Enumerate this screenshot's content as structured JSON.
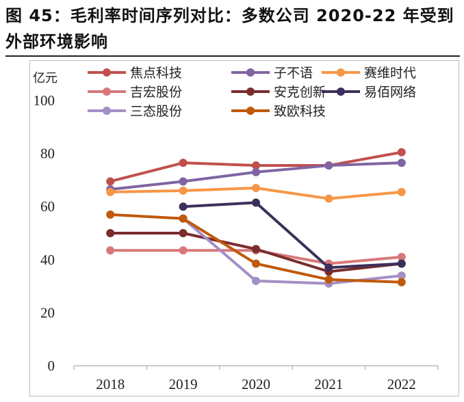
{
  "figure": {
    "title": "图 45：毛利率时间序列对比：多数公司 2020-22 年受到外部环境影响"
  },
  "chart_data": {
    "type": "line",
    "title": "",
    "xlabel": "",
    "ylabel": "亿元",
    "ylim": [
      0,
      100
    ],
    "yticks": [
      0,
      20,
      40,
      60,
      80,
      100
    ],
    "x": [
      "2018",
      "2019",
      "2020",
      "2021",
      "2022"
    ],
    "grid": false,
    "legend_position": "top",
    "series": [
      {
        "name": "焦点科技",
        "color": "#c0504d",
        "values": [
          69.5,
          76.5,
          75.5,
          75.5,
          80.5
        ]
      },
      {
        "name": "子不语",
        "color": "#8064a2",
        "values": [
          66.5,
          69.5,
          73,
          75.5,
          76.5
        ]
      },
      {
        "name": "赛维时代",
        "color": "#f79646",
        "values": [
          65.5,
          66,
          67,
          63,
          65.5
        ]
      },
      {
        "name": "吉宏股份",
        "color": "#d9787a",
        "values": [
          43.5,
          43.5,
          43.5,
          38.5,
          41
        ]
      },
      {
        "name": "安克创新",
        "color": "#7b2c2c",
        "values": [
          50,
          50,
          44,
          35.5,
          38.5
        ]
      },
      {
        "name": "易佰网络",
        "color": "#3d2f5b",
        "values": [
          null,
          60,
          61.5,
          37,
          38.5
        ]
      },
      {
        "name": "三态股份",
        "color": "#a48fc6",
        "values": [
          null,
          55.5,
          32,
          31,
          34
        ]
      },
      {
        "name": "致欧科技",
        "color": "#c0590c",
        "values": [
          57,
          55.5,
          38.5,
          32.5,
          31.5
        ]
      }
    ]
  }
}
